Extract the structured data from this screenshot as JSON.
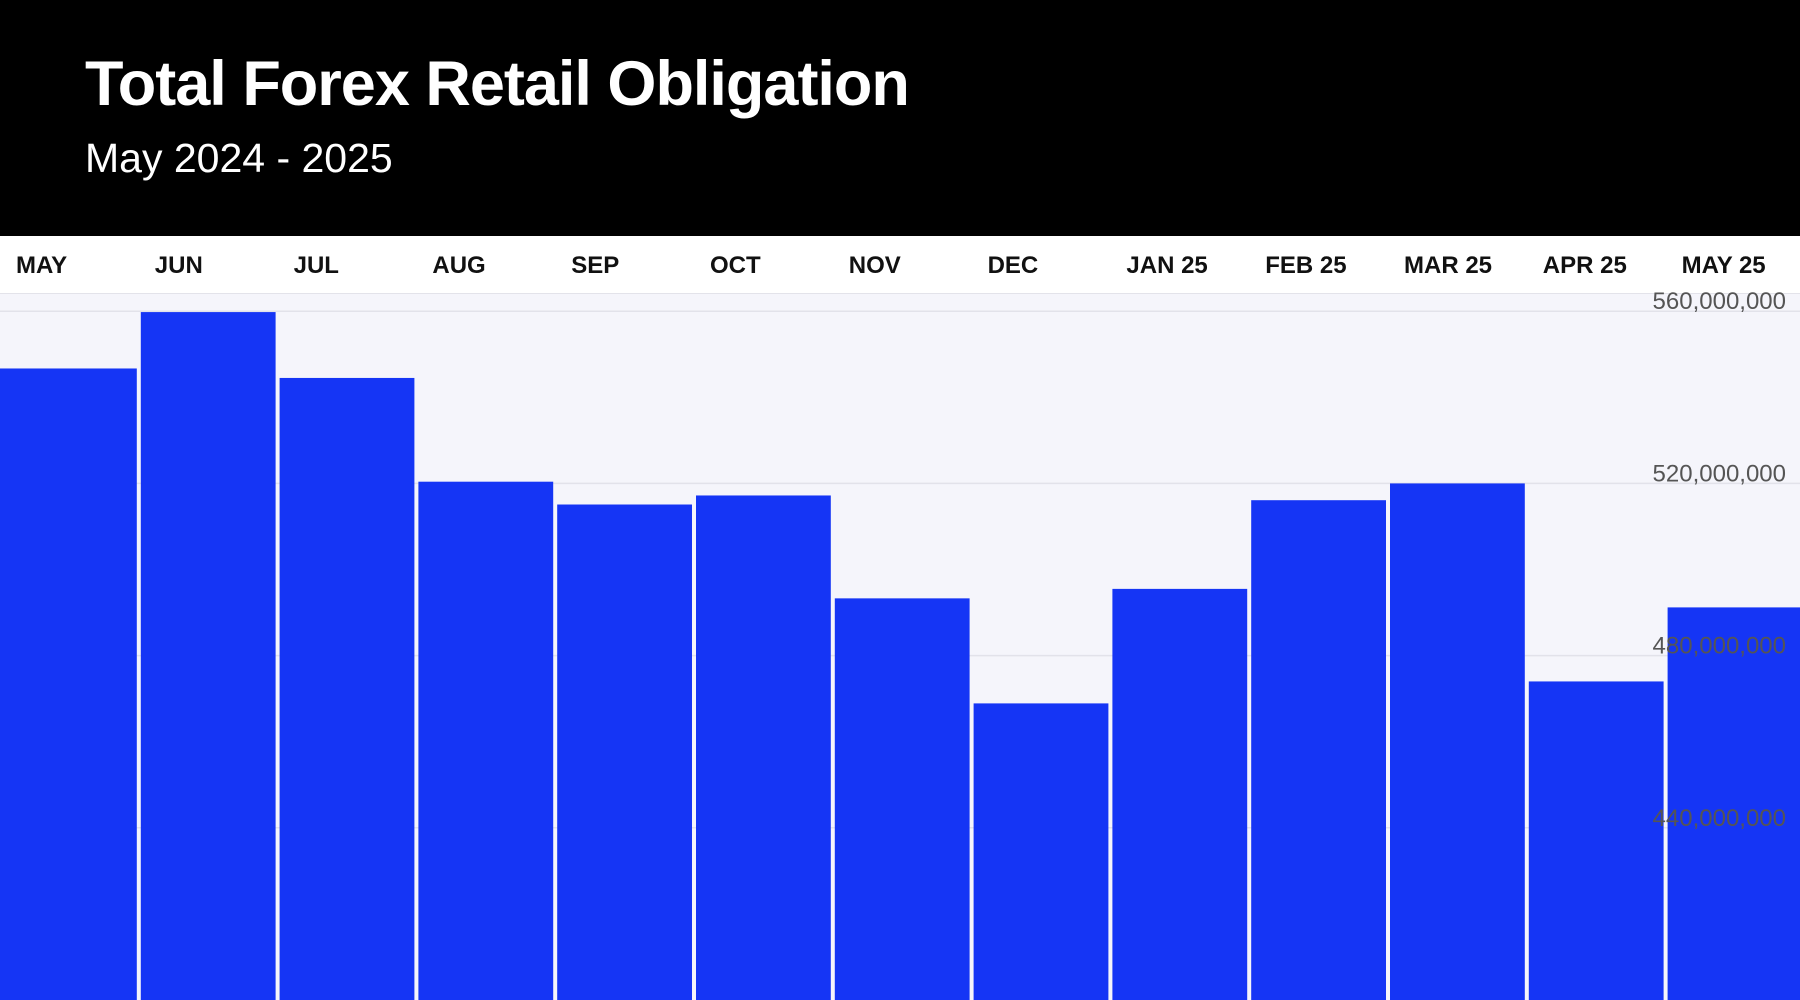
{
  "chart_data": {
    "type": "bar",
    "title": "Total Forex Retail Obligation",
    "subtitle": "May 2024 - 2025",
    "categories": [
      "MAY",
      "JUN",
      "JUL",
      "AUG",
      "SEP",
      "OCT",
      "NOV",
      "DEC",
      "JAN 25",
      "FEB 25",
      "MAR 25",
      "APR 25",
      "MAY 25"
    ],
    "values": [
      546700000,
      559800000,
      544500000,
      520400000,
      515100000,
      517200000,
      493300000,
      468900000,
      495500000,
      516100000,
      520000000,
      474000000,
      491200000
    ],
    "ylim": [
      400000000,
      564000000
    ],
    "yticks": [
      440000000,
      480000000,
      520000000,
      560000000
    ],
    "ytick_labels": [
      "440,000,000",
      "480,000,000",
      "520,000,000",
      "560,000,000"
    ],
    "y_axis_side": "right",
    "x_axis_side": "top",
    "grid": true,
    "bar_color": "#1535f5",
    "xlabel": "",
    "ylabel": ""
  }
}
